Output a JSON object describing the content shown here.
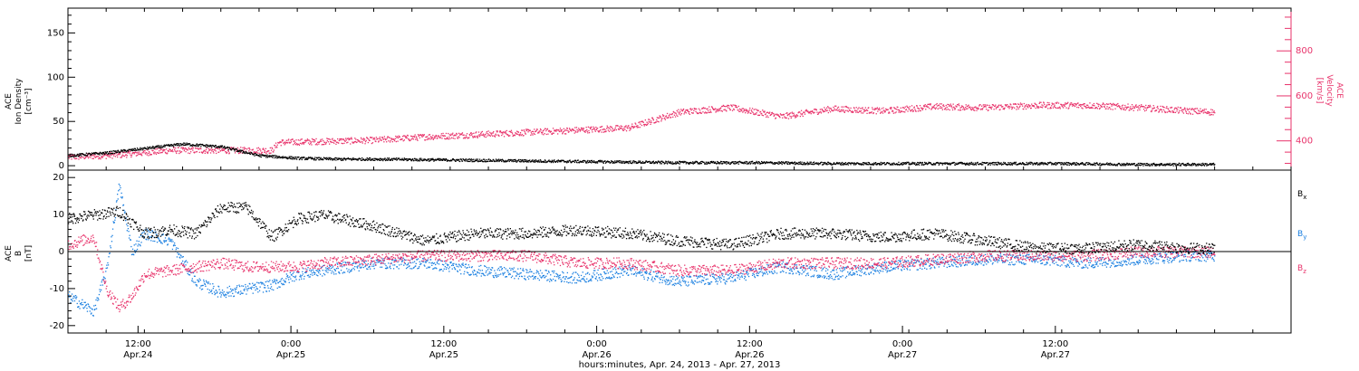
{
  "colors": {
    "black": "#000000",
    "pink": "#e8336b",
    "blue": "#1a7fe0"
  },
  "chart_data": [
    {
      "type": "scatter",
      "panel": "top",
      "left_axis": {
        "label_lines": [
          "ACE",
          "Ion Density",
          "[cm⁻³]"
        ],
        "ylim": [
          -5,
          178
        ],
        "ticks": [
          0,
          50,
          100,
          150
        ],
        "tick_labels": [
          "0",
          "50",
          "100",
          "150"
        ]
      },
      "right_axis": {
        "label_lines": [
          "ACE",
          "Velocity",
          "[km/s]"
        ],
        "ylim": [
          270,
          990
        ],
        "ticks": [
          400,
          600,
          800
        ],
        "tick_labels": [
          "400",
          "600",
          "800"
        ]
      },
      "series": [
        {
          "axis": "left",
          "color": "black",
          "x": [
            0,
            3,
            6,
            9,
            12,
            15,
            18,
            21,
            24,
            30,
            36,
            42,
            48,
            54,
            60,
            66,
            72,
            78,
            84,
            90
          ],
          "y": [
            12,
            15,
            20,
            25,
            22,
            12,
            9,
            8,
            8,
            7,
            6,
            5,
            4,
            4,
            3,
            3,
            3,
            3,
            2,
            2
          ]
        },
        {
          "axis": "right",
          "color": "pink",
          "x": [
            0,
            4,
            8,
            12,
            16,
            16.5,
            20,
            24,
            28,
            32,
            36,
            40,
            44,
            48,
            52,
            56,
            60,
            64,
            68,
            72,
            76,
            80,
            84,
            88,
            90
          ],
          "y": [
            330,
            340,
            360,
            360,
            360,
            395,
            400,
            405,
            420,
            430,
            440,
            450,
            460,
            530,
            550,
            510,
            545,
            535,
            555,
            550,
            560,
            560,
            550,
            535,
            530
          ]
        }
      ]
    },
    {
      "type": "scatter",
      "panel": "bottom",
      "y_axis": {
        "label_lines": [
          "ACE",
          "B",
          "[nT]"
        ],
        "ylim": [
          -22,
          22
        ],
        "ticks": [
          -20,
          -10,
          0,
          10,
          20
        ],
        "tick_labels": [
          "-20",
          "-10",
          "0",
          "10",
          "20"
        ]
      },
      "x_axis": {
        "xlim": [
          0,
          96
        ],
        "ticks": [
          0,
          12,
          24,
          36,
          48,
          60,
          72,
          84,
          96
        ],
        "tick_labels": [
          [
            "12:00",
            "Apr.24"
          ],
          [
            "0:00",
            "Apr.25"
          ],
          [
            "12:00",
            "Apr.25"
          ],
          [
            "0:00",
            "Apr.26"
          ],
          [
            "12:00",
            "Apr.26"
          ],
          [
            "0:00",
            "Apr.27"
          ],
          [
            "12:00",
            "Apr.27"
          ]
        ],
        "tick_label_hours": [
          5.5,
          17.5,
          29.5,
          41.5,
          53.5,
          65.5,
          77.5
        ],
        "title": "hours:minutes, Apr. 24, 2013 - Apr. 27, 2013"
      },
      "series": [
        {
          "name": "Bx",
          "color": "black",
          "x": [
            0,
            2,
            4,
            6,
            8,
            10,
            12,
            14,
            16,
            18,
            20,
            24,
            28,
            32,
            36,
            40,
            44,
            48,
            52,
            56,
            60,
            64,
            68,
            72,
            76,
            80,
            84,
            88,
            90
          ],
          "y": [
            9,
            10,
            11,
            5,
            6,
            5,
            12,
            12,
            4,
            9,
            10,
            7,
            3,
            5,
            5,
            6,
            5,
            3,
            2,
            5,
            5,
            4,
            5,
            3,
            1,
            1,
            2,
            1,
            1
          ]
        },
        {
          "name": "By",
          "color": "blue",
          "x": [
            0,
            2,
            3,
            4,
            5,
            6,
            8,
            10,
            12,
            14,
            16,
            18,
            20,
            24,
            28,
            32,
            36,
            40,
            44,
            48,
            52,
            56,
            60,
            64,
            68,
            72,
            76,
            80,
            84,
            88,
            90
          ],
          "y": [
            -12,
            -16,
            -5,
            18,
            0,
            5,
            3,
            -8,
            -11,
            -10,
            -9,
            -6,
            -5,
            -3,
            -3,
            -5,
            -6,
            -7,
            -5,
            -8,
            -7,
            -4,
            -6,
            -4,
            -3,
            -2,
            -2,
            -3,
            -2,
            -1,
            -1
          ]
        },
        {
          "name": "Bz",
          "color": "pink",
          "x": [
            0,
            2,
            3,
            4,
            5,
            6,
            8,
            10,
            12,
            14,
            16,
            18,
            20,
            24,
            28,
            32,
            36,
            40,
            44,
            48,
            52,
            56,
            60,
            64,
            68,
            72,
            76,
            80,
            84,
            88,
            90
          ],
          "y": [
            2,
            4,
            -10,
            -15,
            -12,
            -6,
            -5,
            -4,
            -3,
            -4,
            -4,
            -4,
            -3,
            -2,
            -1,
            -1,
            -1,
            -3,
            -3,
            -5,
            -5,
            -3,
            -3,
            -3,
            -2,
            -1,
            -1,
            -1,
            0,
            0,
            0
          ]
        }
      ],
      "legend": [
        {
          "label": "B",
          "sub": "x",
          "color": "black"
        },
        {
          "label": "B",
          "sub": "y",
          "color": "blue"
        },
        {
          "label": "B",
          "sub": "z",
          "color": "pink"
        }
      ]
    }
  ]
}
